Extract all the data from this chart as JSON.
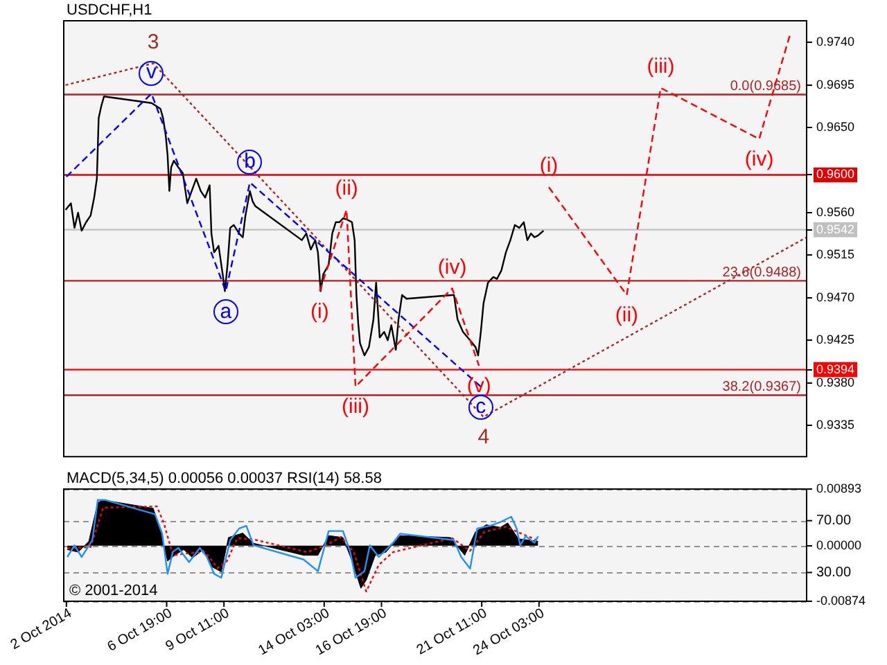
{
  "chart_data": [
    {
      "type": "line",
      "title": "USDCHF,H1",
      "marker": "none",
      "tick_labels": "y",
      "xlim": [
        "2014-10-02T00:00",
        "2014-11-05T14:00"
      ],
      "ylim": [
        0.9302,
        0.9763
      ],
      "yticks": [
        {
          "value": 0.9335,
          "label": "0.9335"
        },
        {
          "value": 0.938,
          "label": "0.9380"
        },
        {
          "value": 0.9394,
          "label": "0.9394"
        },
        {
          "value": 0.9425,
          "label": "0.9425"
        },
        {
          "value": 0.947,
          "label": "0.9470"
        },
        {
          "value": 0.9515,
          "label": "0.9515"
        },
        {
          "value": 0.9542,
          "label": "0.9542"
        },
        {
          "value": 0.956,
          "label": "0.9560"
        },
        {
          "value": 0.96,
          "label": "0.9600"
        },
        {
          "value": 0.965,
          "label": "0.9650"
        },
        {
          "value": 0.9695,
          "label": "0.9695"
        },
        {
          "value": 0.974,
          "label": "0.9740"
        }
      ],
      "series": [
        {
          "color": "#000000",
          "x": [
            "2014-10-02T02:00",
            "2014-10-02T08:00",
            "2014-10-02T12:00",
            "2014-10-02T16:00",
            "2014-10-02T20:00",
            "2014-10-03T01:00",
            "2014-10-03T06:00",
            "2014-10-03T10:00",
            "2014-10-03T13:00",
            "2014-10-03T15:00",
            "2014-10-03T18:00",
            "2014-10-03T21:00",
            "2014-10-06T02:00",
            "2014-10-06T07:00",
            "2014-10-06T12:00",
            "2014-10-06T15:00",
            "2014-10-06T18:00",
            "2014-10-06T20:00",
            "2014-10-06T22:00",
            "2014-10-07T00:00",
            "2014-10-07T03:00",
            "2014-10-07T08:00",
            "2014-10-07T13:00",
            "2014-10-07T18:00",
            "2014-10-07T23:00",
            "2014-10-08T04:00",
            "2014-10-08T09:00",
            "2014-10-08T14:00",
            "2014-10-08T19:00",
            "2014-10-08T21:00",
            "2014-10-09T00:00",
            "2014-10-09T05:00",
            "2014-10-09T10:00",
            "2014-10-09T12:00",
            "2014-10-09T15:00",
            "2014-10-09T18:00",
            "2014-10-09T22:00",
            "2014-10-10T04:00",
            "2014-10-10T08:00",
            "2014-10-10T11:00",
            "2014-10-10T16:00",
            "2014-10-10T19:00",
            "2014-10-10T22:00",
            "2014-10-13T02:00",
            "2014-10-13T07:00",
            "2014-10-13T12:00",
            "2014-10-13T17:00",
            "2014-10-13T20:00",
            "2014-10-13T23:00",
            "2014-10-14T02:00",
            "2014-10-14T08:00",
            "2014-10-14T12:00",
            "2014-10-14T16:00",
            "2014-10-14T20:00",
            "2014-10-15T00:00",
            "2014-10-15T04:00",
            "2014-10-15T10:00",
            "2014-10-15T13:00",
            "2014-10-15T15:00",
            "2014-10-15T17:00",
            "2014-10-15T19:00",
            "2014-10-16T00:00",
            "2014-10-16T05:00",
            "2014-10-16T10:00",
            "2014-10-16T13:00",
            "2014-10-16T17:00",
            "2014-10-16T22:00",
            "2014-10-17T02:00",
            "2014-10-17T06:00",
            "2014-10-17T11:00",
            "2014-10-17T14:00",
            "2014-10-17T18:00",
            "2014-10-17T23:00",
            "2014-10-20T04:00",
            "2014-10-20T08:00",
            "2014-10-20T14:00",
            "2014-10-20T22:00",
            "2014-10-21T04:00",
            "2014-10-21T07:00",
            "2014-10-21T10:00",
            "2014-10-21T13:00",
            "2014-10-21T18:00",
            "2014-10-22T00:00",
            "2014-10-22T04:00",
            "2014-10-22T09:00",
            "2014-10-22T14:00",
            "2014-10-22T19:00",
            "2014-10-23T00:00",
            "2014-10-23T05:00",
            "2014-10-23T10:00",
            "2014-10-23T14:00",
            "2014-10-23T18:00",
            "2014-10-23T22:00",
            "2014-10-24T02:00",
            "2014-10-24T08:00"
          ],
          "values": [
            0.9563,
            0.957,
            0.9544,
            0.956,
            0.9541,
            0.955,
            0.9557,
            0.9576,
            0.9596,
            0.966,
            0.9673,
            0.9683,
            0.9676,
            0.9673,
            0.967,
            0.966,
            0.9641,
            0.9621,
            0.9583,
            0.9608,
            0.9615,
            0.9608,
            0.9602,
            0.957,
            0.9583,
            0.9596,
            0.9583,
            0.9576,
            0.9589,
            0.9538,
            0.9518,
            0.9525,
            0.9492,
            0.9477,
            0.9505,
            0.9544,
            0.9547,
            0.9538,
            0.9534,
            0.9557,
            0.9583,
            0.9572,
            0.9567,
            0.9531,
            0.9538,
            0.9521,
            0.9531,
            0.9518,
            0.9477,
            0.9495,
            0.9505,
            0.9538,
            0.955,
            0.955,
            0.9554,
            0.9553,
            0.955,
            0.9531,
            0.9473,
            0.9443,
            0.9422,
            0.9409,
            0.9418,
            0.9447,
            0.9486,
            0.9428,
            0.9434,
            0.9425,
            0.9441,
            0.9415,
            0.9447,
            0.9473,
            0.9469,
            0.9473,
            0.9447,
            0.9434,
            0.9425,
            0.9418,
            0.9409,
            0.9434,
            0.9464,
            0.9486,
            0.9492,
            0.949,
            0.9499,
            0.9518,
            0.9531,
            0.9547,
            0.9544,
            0.955,
            0.9531,
            0.9538,
            0.9534,
            0.9536,
            0.9541
          ]
        },
        {
          "color": "#a52a2a",
          "line_style": "dotted",
          "x": [
            "2014-10-02T02:00",
            "2014-10-06T04:00",
            "2014-10-21T13:00",
            "2014-11-05T14:00"
          ],
          "values": [
            0.9695,
            0.9718,
            0.9344,
            0.9534
          ]
        },
        {
          "color": "#0000ff",
          "line_style": "dashed",
          "x": [
            "2014-10-02T03:00",
            "2014-10-06T02:00",
            "2014-10-09T13:00",
            "2014-10-10T16:00",
            "2014-10-21T10:00"
          ],
          "values": [
            0.9598,
            0.9686,
            0.9477,
            0.9592,
            0.9376
          ]
        },
        {
          "color": "#ff0000",
          "line_style": "dashed",
          "x": [
            "2014-10-13T22:00",
            "2014-10-15T04:00",
            "2014-10-15T14:00",
            "2014-10-20T02:00",
            "2014-10-21T08:00"
          ],
          "values": [
            0.9477,
            0.9563,
            0.9376,
            0.948,
            0.9398
          ]
        },
        {
          "color": "#ff0000",
          "line_style": "dashed",
          "x": [
            "2014-10-24T14:00",
            "2014-10-28T05:00",
            "2014-10-29T19:00",
            "2014-11-03T09:00",
            "2014-11-04T20:00"
          ],
          "values": [
            0.9587,
            0.9473,
            0.9692,
            0.9638,
            0.975
          ]
        }
      ],
      "ref_lines": [
        {
          "axis": "y",
          "value": 0.9685,
          "label": "0.0(0.9685)",
          "color": "#b22222"
        },
        {
          "axis": "y",
          "value": 0.96,
          "color": "#e00000"
        },
        {
          "axis": "y",
          "value": 0.9542,
          "color": "#c0c0c0"
        },
        {
          "axis": "y",
          "value": 0.9488,
          "label": "23.6(0.9488)",
          "color": "#b22222"
        },
        {
          "axis": "y",
          "value": 0.9394,
          "color": "#ff0000"
        },
        {
          "axis": "y",
          "value": 0.9367,
          "label": "38.2(0.9367)",
          "color": "#b22222"
        }
      ],
      "annotations": [
        {
          "text": "3",
          "x": "2014-10-06T04:00",
          "y": 0.9718
        },
        {
          "text": "v",
          "x": "2014-10-06T02:00",
          "y": 0.9686
        },
        {
          "text": "b",
          "x": "2014-10-10T16:00",
          "y": 0.9592
        },
        {
          "text": "a",
          "x": "2014-10-09T13:00",
          "y": 0.9477
        },
        {
          "text": "(i)",
          "x": "2014-10-13T22:00",
          "y": 0.9477
        },
        {
          "text": "(ii)",
          "x": "2014-10-15T04:00",
          "y": 0.9563
        },
        {
          "text": "(iii)",
          "x": "2014-10-15T14:00",
          "y": 0.9376
        },
        {
          "text": "(iv)",
          "x": "2014-10-20T02:00",
          "y": 0.948
        },
        {
          "text": "(v)",
          "x": "2014-10-21T08:00",
          "y": 0.9398
        },
        {
          "text": "c",
          "x": "2014-10-21T10:00",
          "y": 0.9376
        },
        {
          "text": "4",
          "x": "2014-10-21T13:00",
          "y": 0.9344
        },
        {
          "text": "(i)",
          "x": "2014-10-24T14:00",
          "y": 0.9587
        },
        {
          "text": "(ii)",
          "x": "2014-10-28T05:00",
          "y": 0.9473
        },
        {
          "text": "(iii)",
          "x": "2014-10-29T19:00",
          "y": 0.9692
        },
        {
          "text": "(iv)",
          "x": "2014-11-03T09:00",
          "y": 0.9638
        }
      ]
    },
    {
      "type": "line",
      "title": "MACD(5,34,5) 0.00056 0.00037 RSI(14) 58.58",
      "marker": "none",
      "xlim": [
        "2014-10-02T00:00",
        "2014-11-05T14:00"
      ],
      "xticks": [
        {
          "value": "2014-10-02T03:00",
          "label": "2 Oct 2014"
        },
        {
          "value": "2014-10-06T19:00",
          "label": "6 Oct 19:00"
        },
        {
          "value": "2014-10-09T11:00",
          "label": "9 Oct 11:00"
        },
        {
          "value": "2014-10-14T03:00",
          "label": "14 Oct 03:00"
        },
        {
          "value": "2014-10-16T19:00",
          "label": "16 Oct 19:00"
        },
        {
          "value": "2014-10-21T11:00",
          "label": "21 Oct 11:00"
        },
        {
          "value": "2014-10-24T03:00",
          "label": "24 Oct 03:00"
        }
      ],
      "ylim": [
        -0.00874,
        0.00893
      ],
      "yticks": [
        {
          "value": -0.00874,
          "label": "-0.00874"
        },
        {
          "value": 0,
          "label": "0.00000"
        },
        {
          "value": 0.00893,
          "label": "0.00893"
        }
      ],
      "y2lim": [
        7.8,
        94.4
      ],
      "y2ticks": [
        {
          "value": 30,
          "label": "30.00"
        },
        {
          "value": 70,
          "label": "70.00"
        }
      ],
      "series": [
        {
          "type": "area",
          "color": "#000000",
          "x": [
            "2014-10-02T04:00",
            "2014-10-02T16:00",
            "2014-10-03T04:00",
            "2014-10-03T14:00",
            "2014-10-03T20:00",
            "2014-10-06T04:00",
            "2014-10-06T12:00",
            "2014-10-06T20:00",
            "2014-10-07T04:00",
            "2014-10-07T14:00",
            "2014-10-08T00:00",
            "2014-10-08T12:00",
            "2014-10-08T20:00",
            "2014-10-09T08:00",
            "2014-10-09T16:00",
            "2014-10-10T08:00",
            "2014-10-10T20:00",
            "2014-10-13T04:00",
            "2014-10-13T20:00",
            "2014-10-14T08:00",
            "2014-10-15T00:00",
            "2014-10-15T10:00",
            "2014-10-15T20:00",
            "2014-10-16T02:00",
            "2014-10-16T12:00",
            "2014-10-17T00:00",
            "2014-10-17T16:00",
            "2014-10-20T00:00",
            "2014-10-20T16:00",
            "2014-10-21T04:00",
            "2014-10-21T16:00",
            "2014-10-22T08:00",
            "2014-10-22T16:00",
            "2014-10-23T04:00",
            "2014-10-24T02:00"
          ],
          "values": [
            -0.0006,
            -0.001,
            0.0007,
            0.0068,
            0.0072,
            0.0059,
            0.0024,
            -0.0024,
            -0.0015,
            -0.0006,
            -0.0019,
            -0.0006,
            -0.0032,
            -0.0041,
            0.0013,
            0.002,
            0.0004,
            -0.0015,
            -0.0015,
            0.0016,
            0.0013,
            -0.0024,
            -0.0067,
            -0.0054,
            -0.0015,
            -0.001,
            0.0016,
            0.0013,
            -0.0015,
            0.0022,
            0.0033,
            0.0029,
            0.0036,
            0.0011,
            0.0007
          ]
        },
        {
          "color": "#ff0000",
          "line_style": "dotted",
          "x": [
            "2014-10-02T04:00",
            "2014-10-03T06:00",
            "2014-10-03T20:00",
            "2014-10-06T08:00",
            "2014-10-06T16:00",
            "2014-10-07T02:00",
            "2014-10-07T18:00",
            "2014-10-08T14:00",
            "2014-10-09T04:00",
            "2014-10-09T14:00",
            "2014-10-10T02:00",
            "2014-10-10T20:00",
            "2014-10-13T08:00",
            "2014-10-14T04:00",
            "2014-10-14T22:00",
            "2014-10-15T12:00",
            "2014-10-16T02:00",
            "2014-10-16T16:00",
            "2014-10-17T08:00",
            "2014-10-20T02:00",
            "2014-10-20T22:00",
            "2014-10-21T14:00",
            "2014-10-22T14:00",
            "2014-10-23T06:00",
            "2014-10-24T02:00"
          ],
          "values": [
            -0.0004,
            -0.0002,
            0.006,
            0.0062,
            0.0035,
            -0.0015,
            -0.0012,
            -0.001,
            -0.0035,
            -0.0025,
            0.0012,
            0.001,
            -0.001,
            0.0,
            0.0014,
            -0.001,
            -0.0072,
            -0.003,
            -0.001,
            0.0012,
            -0.0008,
            0.0022,
            0.003,
            0.002,
            0.0008
          ]
        },
        {
          "color": "#1e90ff",
          "axis": "y2",
          "x": [
            "2014-10-02T04:00",
            "2014-10-02T12:00",
            "2014-10-02T20:00",
            "2014-10-03T08:00",
            "2014-10-03T14:00",
            "2014-10-03T22:00",
            "2014-10-06T06:00",
            "2014-10-06T14:00",
            "2014-10-06T20:00",
            "2014-10-07T02:00",
            "2014-10-07T08:00",
            "2014-10-07T20:00",
            "2014-10-08T08:00",
            "2014-10-08T16:00",
            "2014-10-09T00:00",
            "2014-10-09T08:00",
            "2014-10-09T18:00",
            "2014-10-10T04:00",
            "2014-10-10T12:00",
            "2014-10-10T20:00",
            "2014-10-13T04:00",
            "2014-10-13T20:00",
            "2014-10-14T08:00",
            "2014-10-15T00:00",
            "2014-10-15T08:00",
            "2014-10-15T14:00",
            "2014-10-16T00:00",
            "2014-10-16T06:00",
            "2014-10-16T16:00",
            "2014-10-17T08:00",
            "2014-10-17T16:00",
            "2014-10-20T04:00",
            "2014-10-20T12:00",
            "2014-10-20T22:00",
            "2014-10-21T06:00",
            "2014-10-21T20:00",
            "2014-10-22T08:00",
            "2014-10-22T20:00",
            "2014-10-23T02:00",
            "2014-10-23T06:00",
            "2014-10-23T12:00",
            "2014-10-23T22:00",
            "2014-10-24T02:00"
          ],
          "values": [
            42,
            51,
            42,
            55,
            86,
            86,
            75,
            60,
            29,
            46,
            49,
            38,
            49,
            42,
            29,
            26,
            55,
            64,
            66,
            51,
            40,
            31,
            62,
            62,
            46,
            26,
            31,
            51,
            42,
            53,
            60,
            55,
            42,
            33,
            64,
            66,
            69,
            73,
            64,
            51,
            58,
            53,
            58
          ]
        }
      ],
      "grid": "y",
      "annotations": [
        "© 2001-2014"
      ]
    }
  ]
}
